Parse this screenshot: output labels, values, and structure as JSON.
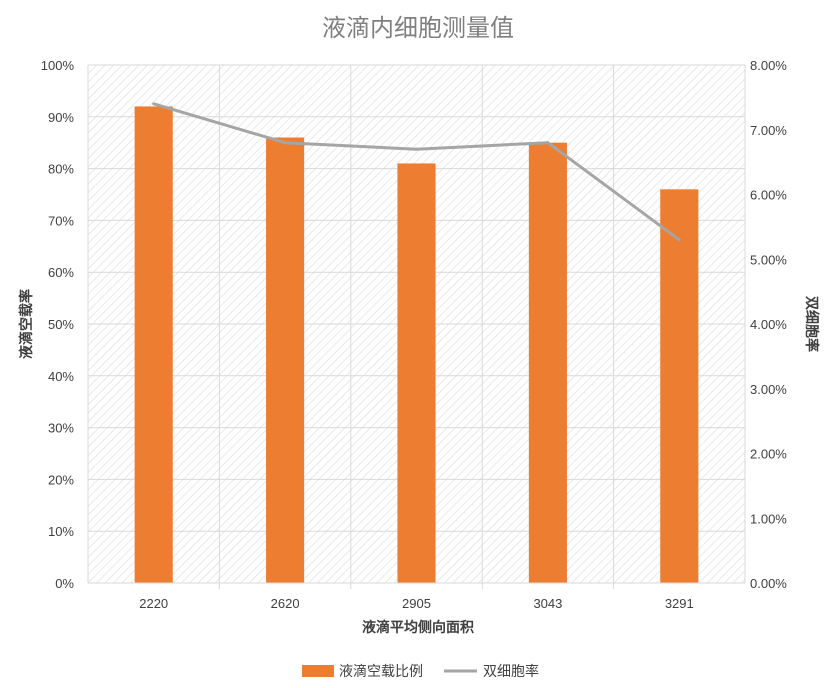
{
  "chart_data": {
    "type": "bar",
    "title": "液滴内细胞测量值",
    "xlabel": "液滴平均侧向面积",
    "ylabel": "液滴空载率",
    "y2label": "双细胞率",
    "categories": [
      "2220",
      "2620",
      "2905",
      "3043",
      "3291"
    ],
    "ylim": [
      0,
      100
    ],
    "y2lim": [
      0,
      8
    ],
    "yticks": [
      "0%",
      "10%",
      "20%",
      "30%",
      "40%",
      "50%",
      "60%",
      "70%",
      "80%",
      "90%",
      "100%"
    ],
    "y2ticks": [
      "0.00%",
      "1.00%",
      "2.00%",
      "3.00%",
      "4.00%",
      "5.00%",
      "6.00%",
      "7.00%",
      "8.00%"
    ],
    "series": [
      {
        "name": "液滴空载比例",
        "type": "bar",
        "axis": "left",
        "unit": "%",
        "values": [
          92,
          86,
          81,
          85,
          76
        ]
      },
      {
        "name": "双细胞率",
        "type": "line",
        "axis": "right",
        "unit": "%",
        "values": [
          7.4,
          6.8,
          6.7,
          6.8,
          5.3
        ]
      }
    ],
    "grid": true,
    "legend_position": "bottom",
    "colors": {
      "bar": "#ed7d31",
      "line": "#a5a5a5",
      "grid": "#d9d9d9",
      "hatch": "#e7e7e7"
    }
  }
}
